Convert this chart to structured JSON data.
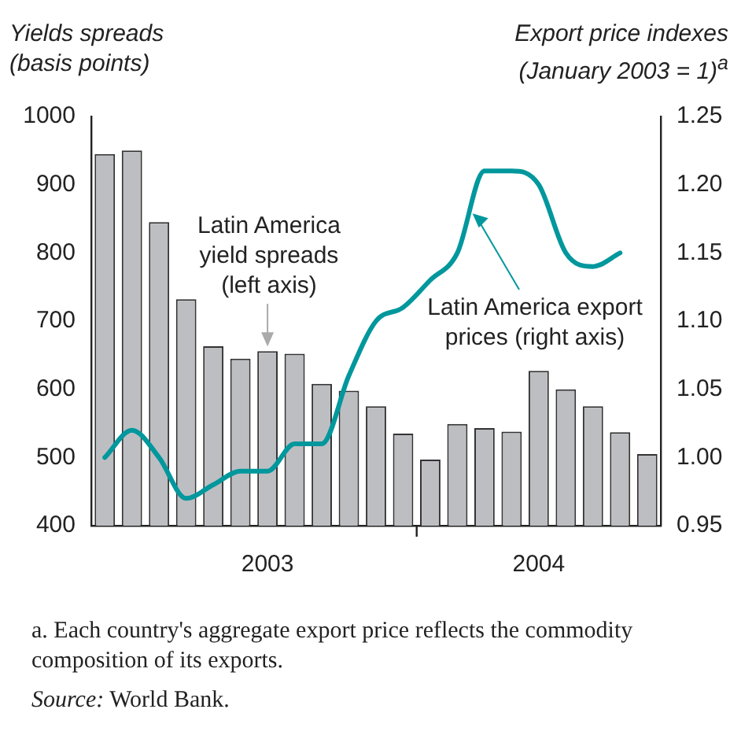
{
  "chart_data": {
    "type": "bar",
    "ylabel": "Yields spreads (basis points)",
    "y2label": "Export price indexes (January 2003 = 1)$^{a}$",
    "categories": [
      null,
      null,
      null,
      null,
      null,
      null,
      "2003",
      null,
      null,
      null,
      null,
      null,
      null,
      null,
      null,
      null,
      "2004",
      null,
      null,
      null,
      null
    ],
    "series": [
      {
        "name": "Latin America yield spreads (left axis)",
        "color": "#bdbec2",
        "values": [
          945,
          950,
          845,
          732,
          663,
          645,
          656,
          652,
          608,
          598,
          575,
          535,
          497,
          549,
          543,
          538,
          627,
          600,
          575,
          537,
          505
        ]
      },
      {
        "name": "Latin America export prices (right axis)",
        "type": "line",
        "axis": "y2",
        "color": "#00979d",
        "values": [
          1.0,
          1.02,
          1.0,
          0.97,
          0.98,
          0.99,
          0.99,
          1.01,
          1.01,
          1.06,
          1.1,
          1.11,
          1.13,
          1.15,
          1.21,
          1.21,
          1.2,
          1.15,
          1.14,
          1.15,
          null
        ]
      }
    ],
    "ylim": [
      400,
      1000
    ],
    "yticks": [
      400,
      500,
      600,
      700,
      800,
      900,
      1000
    ],
    "y2lim": [
      0.95,
      1.25
    ],
    "y2ticks": [
      0.95,
      {
        "value": 1.0,
        "label": "1.00"
      },
      1.05,
      {
        "value": 1.1,
        "label": "1.10"
      },
      1.15,
      {
        "value": 1.2,
        "label": "1.20"
      },
      1.25
    ],
    "grid": false,
    "legend": false,
    "marker": "none",
    "line_style": "solid",
    "annotations": [
      "a. Each country's aggregate export price reflects the commodity composition of its exports.",
      "Source: World Bank."
    ]
  }
}
